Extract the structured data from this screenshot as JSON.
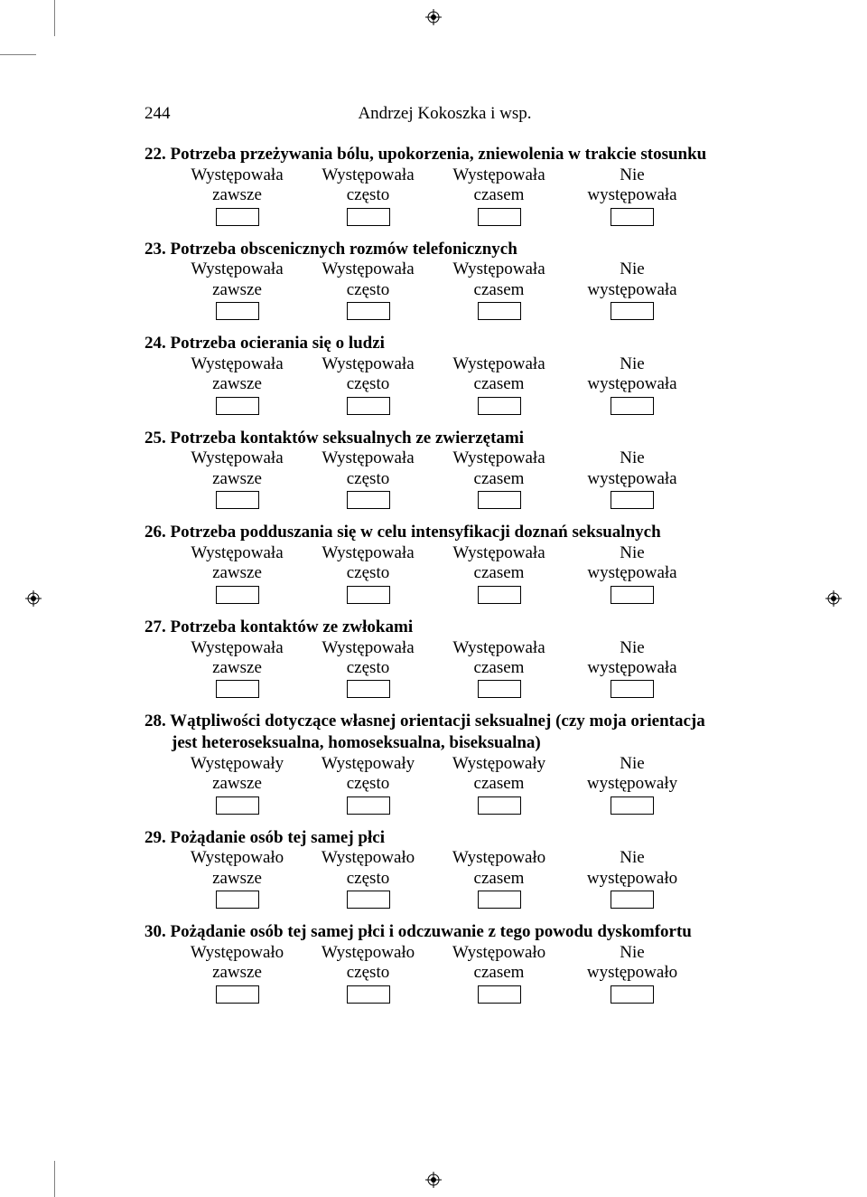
{
  "page_number": "244",
  "header_author": "Andrzej Kokoszka i wsp.",
  "option_set_a": {
    "c1_l1": "Występowała",
    "c1_l2": "zawsze",
    "c2_l1": "Występowała",
    "c2_l2": "często",
    "c3_l1": "Występowała",
    "c3_l2": "czasem",
    "c4_l1": "Nie",
    "c4_l2": "występowała"
  },
  "option_set_b": {
    "c1_l1": "Występowały",
    "c1_l2": "zawsze",
    "c2_l1": "Występowały",
    "c2_l2": "często",
    "c3_l1": "Występowały",
    "c3_l2": "czasem",
    "c4_l1": "Nie",
    "c4_l2": "występowały"
  },
  "option_set_c": {
    "c1_l1": "Występowało",
    "c1_l2": "zawsze",
    "c2_l1": "Występowało",
    "c2_l2": "często",
    "c3_l1": "Występowało",
    "c3_l2": "czasem",
    "c4_l1": "Nie",
    "c4_l2": "występowało"
  },
  "questions": [
    {
      "num": "22.",
      "text": "Potrzeba przeżywania bólu, upokorzenia, zniewolenia w trakcie stosunku",
      "opts": "a"
    },
    {
      "num": "23.",
      "text": "Potrzeba obscenicznych rozmów telefonicznych",
      "opts": "a"
    },
    {
      "num": "24.",
      "text": "Potrzeba ocierania się o ludzi",
      "opts": "a"
    },
    {
      "num": "25.",
      "text": "Potrzeba kontaktów seksualnych ze zwierzętami",
      "opts": "a"
    },
    {
      "num": "26.",
      "text": "Potrzeba podduszania się w celu intensyfikacji doznań seksualnych",
      "opts": "a"
    },
    {
      "num": "27.",
      "text": "Potrzeba kontaktów ze zwłokami",
      "opts": "a"
    },
    {
      "num": "28.",
      "text": "Wątpliwości dotyczące własnej orientacji seksualnej (czy moja orientacja",
      "text2": "jest heteroseksualna, homoseksualna, biseksualna)",
      "opts": "b"
    },
    {
      "num": "29.",
      "text": "Pożądanie osób tej samej płci",
      "opts": "c"
    },
    {
      "num": "30.",
      "text": "Pożądanie osób tej samej płci i odczuwanie z tego powodu dyskomfortu",
      "opts": "c"
    }
  ]
}
